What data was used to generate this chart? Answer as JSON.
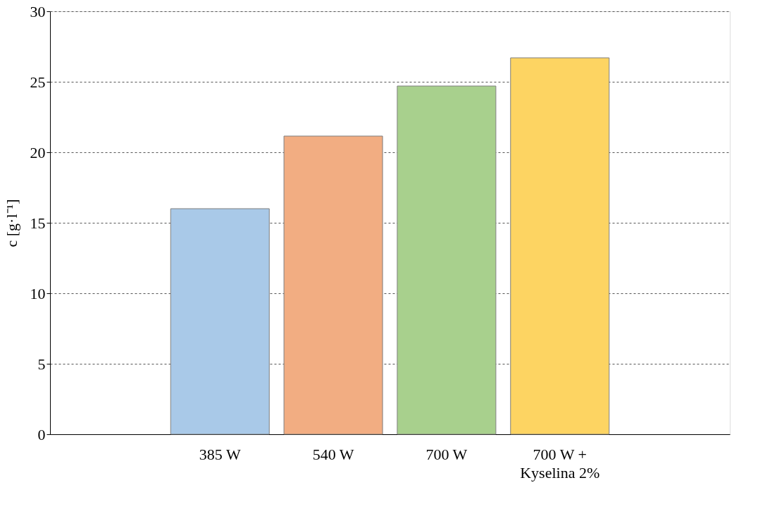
{
  "chart_data": {
    "type": "bar",
    "ylabel": "c [g·l⁻¹]",
    "categories": [
      null,
      "385 W",
      "540 W",
      "700 W",
      "700 W +\nKyselina 2%",
      null
    ],
    "values": [
      null,
      16.0,
      21.15,
      24.7,
      26.7,
      null
    ],
    "colors": [
      "#ffffff",
      "#a9c9e8",
      "#f2ad82",
      "#a8d08d",
      "#fdd462",
      "#ffffff"
    ],
    "ylim": [
      0,
      30
    ],
    "yticks": [
      0,
      5,
      10,
      15,
      20,
      25,
      30
    ],
    "grid": "y",
    "legend": false
  }
}
